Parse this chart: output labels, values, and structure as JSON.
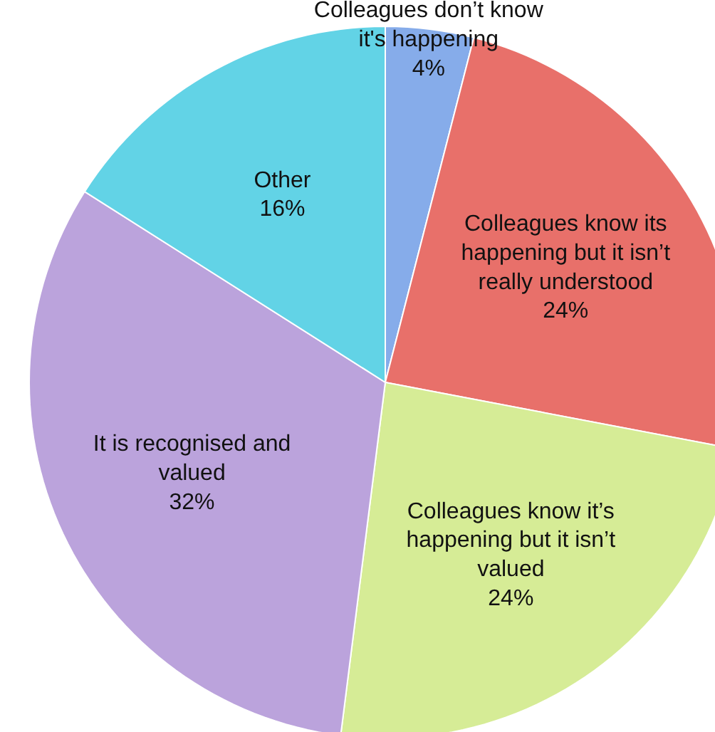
{
  "chart_data": {
    "type": "pie",
    "categories": [
      "Colleagues don’t know\nit's happening",
      "Colleagues know its\nhappening but it isn’t\nreally understood",
      "Colleagues know it’s\nhappening but it isn’t\nvalued",
      "It is recognised and\nvalued",
      "Other"
    ],
    "values": [
      4,
      24,
      24,
      32,
      16
    ],
    "value_labels": [
      "4%",
      "24%",
      "24%",
      "32%",
      "16%"
    ],
    "colors": [
      "#86acea",
      "#e8706a",
      "#d6ec96",
      "#bba3dc",
      "#62d3e6"
    ]
  }
}
